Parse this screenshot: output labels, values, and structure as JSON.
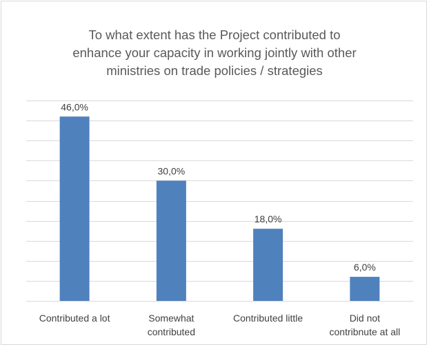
{
  "chart_data": {
    "type": "bar",
    "title": [
      "To what extent has the Project contributed to",
      "enhance your capacity in working jointly with other",
      "ministries on trade policies / strategies"
    ],
    "categories": [
      [
        "Contributed a lot"
      ],
      [
        "Somewhat",
        "contributed"
      ],
      [
        "Contributed little"
      ],
      [
        "Did not",
        "contribnute at all"
      ]
    ],
    "values": [
      46,
      30,
      18,
      6
    ],
    "data_labels": [
      "46,0%",
      "30,0%",
      "18,0%",
      "6,0%"
    ],
    "ylim": [
      0,
      50
    ],
    "gridline_step": 5,
    "grid": true,
    "bar_color": "#4f81bd"
  }
}
